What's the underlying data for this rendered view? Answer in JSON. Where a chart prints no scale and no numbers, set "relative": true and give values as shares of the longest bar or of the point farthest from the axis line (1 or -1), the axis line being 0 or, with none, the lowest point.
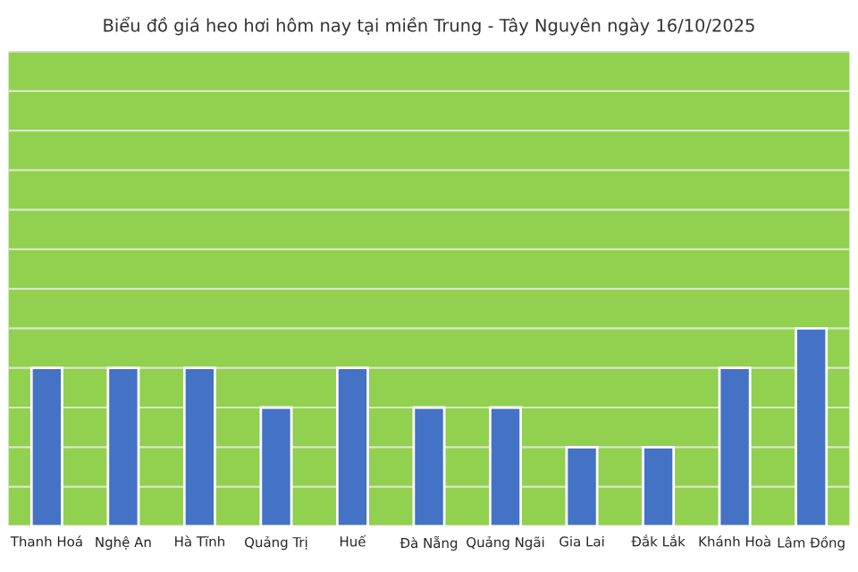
{
  "chart_data": {
    "type": "bar",
    "title": "Biểu đồ giá heo hơi hôm nay tại miền Trung - Tây Nguyên ngày 16/10/2025",
    "categories": [
      "Thanh Hoá",
      "Nghệ An",
      "Hà Tĩnh",
      "Quảng Trị",
      "Huế",
      "Đà Nẵng",
      "Quảng Ngãi",
      "Gia Lai",
      "Đắk Lắk",
      "Khánh Hoà",
      "Lâm Đồng"
    ],
    "values": [
      0.8,
      0.8,
      0.8,
      0.6,
      0.8,
      0.6,
      0.6,
      0.4,
      0.4,
      0.8,
      1
    ],
    "color": "#4472c4",
    "relative": true,
    "grid": "y",
    "tick_labels": "x"
  }
}
